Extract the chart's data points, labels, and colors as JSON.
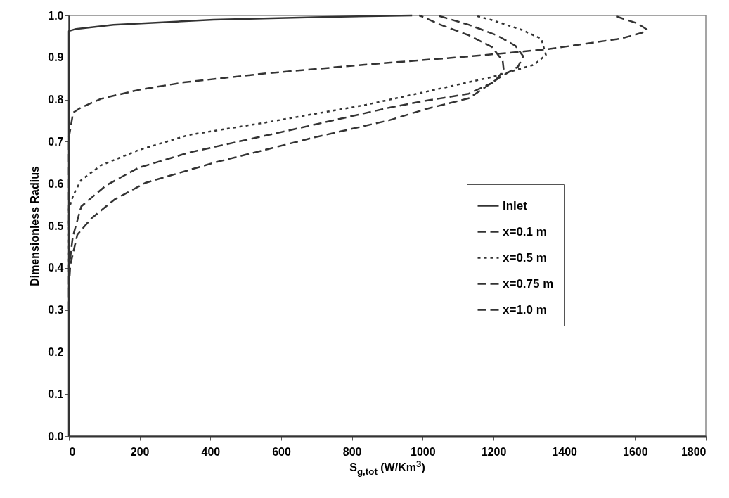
{
  "chart_data": {
    "type": "line",
    "xlabel": "S$_{g,tot}$ (W/Km$^{3}$)",
    "ylabel": "Dimensionless Radius",
    "xlim": [
      0,
      1800
    ],
    "xticks": [
      0,
      200,
      400,
      600,
      800,
      1000,
      1200,
      1400,
      1600,
      1800
    ],
    "ylim": [
      0,
      1
    ],
    "yticks": [
      {
        "value": 0,
        "label": "0.0"
      },
      0.1,
      0.2,
      0.3,
      0.4,
      0.5,
      0.6,
      0.7,
      0.8,
      0.9,
      {
        "value": 1,
        "label": "1.0"
      }
    ],
    "grid": false,
    "legend": "right",
    "marker": "none",
    "series": [
      {
        "name": "Inlet",
        "color": "#333333",
        "line_style": "solid",
        "x": [
          0,
          0,
          0,
          20,
          126,
          409,
          693,
          970
        ],
        "values": [
          0,
          0.5,
          0.963,
          0.968,
          0.978,
          0.99,
          0.996,
          1.0
        ]
      },
      {
        "name": "x=0.1 m",
        "color": "#333333",
        "line_style": "dashed",
        "x": [
          0,
          0,
          12,
          34,
          91,
          197,
          325,
          552,
          836,
          1091,
          1176,
          1355,
          1560,
          1620,
          1633,
          1607,
          1547,
          1540
        ],
        "values": [
          0.5,
          0.71,
          0.769,
          0.781,
          0.802,
          0.823,
          0.841,
          0.862,
          0.883,
          0.9,
          0.906,
          0.92,
          0.945,
          0.959,
          0.967,
          0.981,
          0.998,
          1.0
        ]
      },
      {
        "name": "x=0.5 m",
        "color": "#333333",
        "line_style": "dotted",
        "x": [
          0,
          0,
          12,
          34,
          91,
          197,
          339,
          552,
          836,
          1000,
          1192,
          1315,
          1348,
          1335,
          1276,
          1196,
          1156,
          1150
        ],
        "values": [
          0.4,
          0.54,
          0.572,
          0.608,
          0.644,
          0.68,
          0.716,
          0.745,
          0.787,
          0.817,
          0.853,
          0.883,
          0.906,
          0.945,
          0.967,
          0.989,
          0.998,
          1.0
        ]
      },
      {
        "name": "x=0.75 m",
        "color": "#333333",
        "line_style": "dashed",
        "x": [
          0,
          0,
          11,
          35,
          105,
          197,
          339,
          623,
          906,
          1000,
          1130,
          1202,
          1229,
          1226,
          1196,
          1130,
          1050,
          997,
          990
        ],
        "values": [
          0.3,
          0.396,
          0.474,
          0.546,
          0.596,
          0.638,
          0.674,
          0.727,
          0.781,
          0.796,
          0.814,
          0.842,
          0.87,
          0.892,
          0.925,
          0.953,
          0.978,
          0.998,
          1.0
        ]
      },
      {
        "name": "x=1.0 m",
        "color": "#333333",
        "line_style": "dashed",
        "x": [
          0,
          4,
          24,
          64,
          130,
          216,
          410,
          693,
          906,
          1011,
          1130,
          1218,
          1269,
          1284,
          1262,
          1209,
          1130,
          1050,
          1040
        ],
        "values": [
          0.35,
          0.407,
          0.479,
          0.518,
          0.563,
          0.602,
          0.65,
          0.71,
          0.751,
          0.778,
          0.803,
          0.853,
          0.878,
          0.903,
          0.928,
          0.953,
          0.978,
          0.998,
          1.0
        ]
      }
    ]
  }
}
